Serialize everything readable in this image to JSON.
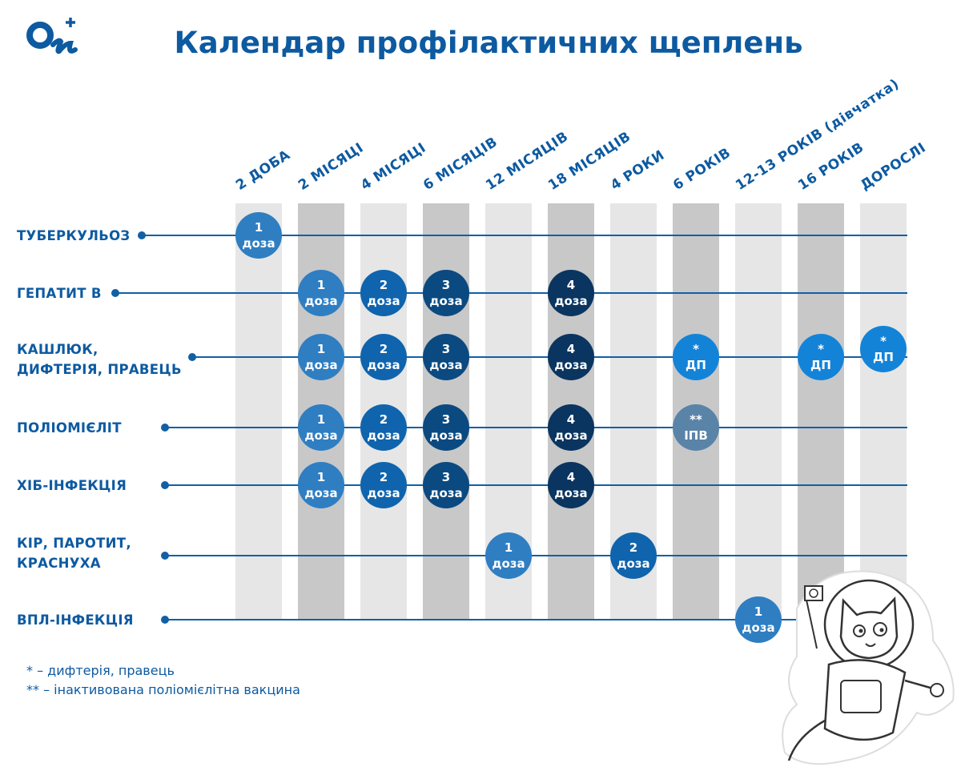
{
  "logo": {
    "text": "On+"
  },
  "title": "Календар профілактичних щеплень",
  "columns": [
    "2 ДОБА",
    "2 МІСЯЦІ",
    "4 МІСЯЦІ",
    "6 МІСЯЦІВ",
    "12 МІСЯЦІВ",
    "18 МІСЯЦІВ",
    "4 РОКИ",
    "6 РОКІВ",
    "12-13 РОКІВ (дівчатка)",
    "16 РОКІВ",
    "ДОРОСЛІ"
  ],
  "rows": [
    {
      "label": "ТУБЕРКУЛЬОЗ",
      "doses": [
        {
          "col": 0,
          "top": "1",
          "bottom": "доза",
          "kind": "d1"
        }
      ]
    },
    {
      "label": "ГЕПАТИТ В",
      "doses": [
        {
          "col": 1,
          "top": "1",
          "bottom": "доза",
          "kind": "d1"
        },
        {
          "col": 2,
          "top": "2",
          "bottom": "доза",
          "kind": "d2"
        },
        {
          "col": 3,
          "top": "3",
          "bottom": "доза",
          "kind": "d3"
        },
        {
          "col": 5,
          "top": "4",
          "bottom": "доза",
          "kind": "d4"
        }
      ]
    },
    {
      "label": "КАШЛЮК,\nДИФТЕРІЯ, ПРАВЕЦЬ",
      "doses": [
        {
          "col": 1,
          "top": "1",
          "bottom": "доза",
          "kind": "d1"
        },
        {
          "col": 2,
          "top": "2",
          "bottom": "доза",
          "kind": "d2"
        },
        {
          "col": 3,
          "top": "3",
          "bottom": "доза",
          "kind": "d3"
        },
        {
          "col": 5,
          "top": "4",
          "bottom": "доза",
          "kind": "d4"
        },
        {
          "col": 7,
          "top": "*",
          "bottom": "ДП",
          "kind": "dp"
        },
        {
          "col": 9,
          "top": "*",
          "bottom": "ДП",
          "kind": "dp"
        },
        {
          "col": 10,
          "top": "*",
          "bottom": "ДП",
          "kind": "dp"
        }
      ]
    },
    {
      "label": "ПОЛІОМІЄЛІТ",
      "doses": [
        {
          "col": 1,
          "top": "1",
          "bottom": "доза",
          "kind": "d1"
        },
        {
          "col": 2,
          "top": "2",
          "bottom": "доза",
          "kind": "d2"
        },
        {
          "col": 3,
          "top": "3",
          "bottom": "доза",
          "kind": "d3"
        },
        {
          "col": 5,
          "top": "4",
          "bottom": "доза",
          "kind": "d4"
        },
        {
          "col": 7,
          "top": "**",
          "bottom": "ІПВ",
          "kind": "ipv"
        }
      ]
    },
    {
      "label": "ХІБ-ІНФЕКЦІЯ",
      "doses": [
        {
          "col": 1,
          "top": "1",
          "bottom": "доза",
          "kind": "d1"
        },
        {
          "col": 2,
          "top": "2",
          "bottom": "доза",
          "kind": "d2"
        },
        {
          "col": 3,
          "top": "3",
          "bottom": "доза",
          "kind": "d3"
        },
        {
          "col": 5,
          "top": "4",
          "bottom": "доза",
          "kind": "d4"
        }
      ]
    },
    {
      "label": "КІР, ПАРОТИТ,\nКРАСНУХА",
      "doses": [
        {
          "col": 4,
          "top": "1",
          "bottom": "доза",
          "kind": "d1"
        },
        {
          "col": 6,
          "top": "2",
          "bottom": "доза",
          "kind": "d2"
        }
      ]
    },
    {
      "label": "ВПЛ-ІНФЕКЦІЯ",
      "doses": [
        {
          "col": 8,
          "top": "1",
          "bottom": "доза",
          "kind": "d1"
        }
      ]
    }
  ],
  "notes": [
    "* – дифтерія, правець",
    "** – інактивована поліомієлітна вакцина"
  ],
  "colors": {
    "d1": "#2f7ec2",
    "d2": "#0f64ad",
    "d3": "#0b4a80",
    "d4": "#0a3560",
    "dp": "#1383d8",
    "ipv": "#5a83a8",
    "line": "#1160a6",
    "title": "#0d5aa1"
  }
}
